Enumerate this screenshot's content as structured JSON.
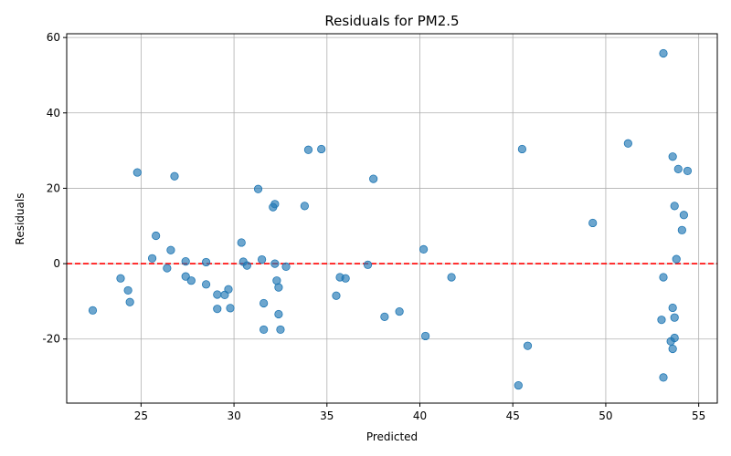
{
  "chart_data": {
    "type": "scatter",
    "title": "Residuals for PM2.5",
    "xlabel": "Predicted",
    "ylabel": "Residuals",
    "xlim": [
      21,
      56
    ],
    "ylim": [
      -37,
      61
    ],
    "xticks": [
      25,
      30,
      35,
      40,
      45,
      50,
      55
    ],
    "yticks": [
      -20,
      0,
      20,
      40,
      60
    ],
    "grid": true,
    "point_color": "#1f77b4",
    "reference_line": {
      "y": 0,
      "color": "#ff0000",
      "style": "dashed"
    },
    "points": [
      {
        "x": 22.4,
        "y": -12.4
      },
      {
        "x": 23.9,
        "y": -3.9
      },
      {
        "x": 24.3,
        "y": -7.1
      },
      {
        "x": 24.4,
        "y": -10.2
      },
      {
        "x": 24.8,
        "y": 24.2
      },
      {
        "x": 25.6,
        "y": 1.4
      },
      {
        "x": 25.8,
        "y": 7.4
      },
      {
        "x": 26.4,
        "y": -1.2
      },
      {
        "x": 26.6,
        "y": 3.6
      },
      {
        "x": 26.8,
        "y": 23.2
      },
      {
        "x": 27.4,
        "y": 0.6
      },
      {
        "x": 27.4,
        "y": -3.4
      },
      {
        "x": 27.7,
        "y": -4.5
      },
      {
        "x": 28.5,
        "y": 0.4
      },
      {
        "x": 28.5,
        "y": -5.5
      },
      {
        "x": 29.1,
        "y": -8.2
      },
      {
        "x": 29.1,
        "y": -12.0
      },
      {
        "x": 29.5,
        "y": -8.3
      },
      {
        "x": 29.7,
        "y": -6.8
      },
      {
        "x": 29.8,
        "y": -11.8
      },
      {
        "x": 30.4,
        "y": 5.6
      },
      {
        "x": 30.5,
        "y": 0.5
      },
      {
        "x": 30.7,
        "y": -0.5
      },
      {
        "x": 31.3,
        "y": 19.8
      },
      {
        "x": 31.5,
        "y": 1.1
      },
      {
        "x": 31.6,
        "y": -10.5
      },
      {
        "x": 31.6,
        "y": -17.5
      },
      {
        "x": 32.1,
        "y": 15.0
      },
      {
        "x": 32.2,
        "y": 15.8
      },
      {
        "x": 32.2,
        "y": 0.0
      },
      {
        "x": 32.3,
        "y": -4.5
      },
      {
        "x": 32.4,
        "y": -6.3
      },
      {
        "x": 32.4,
        "y": -13.4
      },
      {
        "x": 32.5,
        "y": -17.5
      },
      {
        "x": 32.8,
        "y": -0.8
      },
      {
        "x": 33.8,
        "y": 15.3
      },
      {
        "x": 34.0,
        "y": 30.2
      },
      {
        "x": 34.7,
        "y": 30.4
      },
      {
        "x": 35.5,
        "y": -8.5
      },
      {
        "x": 35.7,
        "y": -3.6
      },
      {
        "x": 36.0,
        "y": -3.9
      },
      {
        "x": 37.2,
        "y": -0.3
      },
      {
        "x": 37.5,
        "y": 22.5
      },
      {
        "x": 38.1,
        "y": -14.1
      },
      {
        "x": 38.9,
        "y": -12.7
      },
      {
        "x": 40.2,
        "y": 3.8
      },
      {
        "x": 40.3,
        "y": -19.2
      },
      {
        "x": 41.7,
        "y": -3.6
      },
      {
        "x": 45.3,
        "y": -32.3
      },
      {
        "x": 45.5,
        "y": 30.4
      },
      {
        "x": 45.8,
        "y": -21.8
      },
      {
        "x": 49.3,
        "y": 10.8
      },
      {
        "x": 51.2,
        "y": 31.9
      },
      {
        "x": 53.0,
        "y": -14.9
      },
      {
        "x": 53.1,
        "y": 55.8
      },
      {
        "x": 53.1,
        "y": -3.6
      },
      {
        "x": 53.1,
        "y": -30.2
      },
      {
        "x": 53.5,
        "y": -20.6
      },
      {
        "x": 53.6,
        "y": 28.4
      },
      {
        "x": 53.6,
        "y": -11.7
      },
      {
        "x": 53.6,
        "y": -22.6
      },
      {
        "x": 53.7,
        "y": 15.3
      },
      {
        "x": 53.7,
        "y": -14.3
      },
      {
        "x": 53.7,
        "y": -19.7
      },
      {
        "x": 53.8,
        "y": 1.2
      },
      {
        "x": 53.9,
        "y": 25.1
      },
      {
        "x": 54.1,
        "y": 8.9
      },
      {
        "x": 54.2,
        "y": 12.9
      },
      {
        "x": 54.4,
        "y": 24.6
      }
    ]
  }
}
